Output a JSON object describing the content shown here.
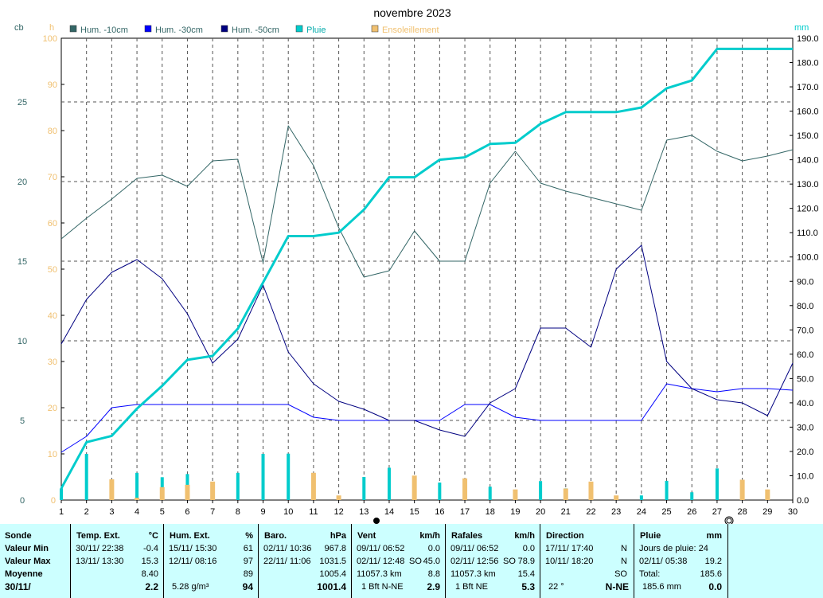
{
  "chart_data": {
    "type": "line",
    "title": "novembre 2023",
    "days": [
      1,
      2,
      3,
      4,
      5,
      6,
      7,
      8,
      9,
      10,
      11,
      12,
      13,
      14,
      15,
      16,
      17,
      18,
      19,
      20,
      21,
      22,
      23,
      24,
      25,
      26,
      27,
      28,
      29,
      30
    ],
    "axes": {
      "left_cb": {
        "label": "cb",
        "ticks": [
          5,
          10,
          15,
          20,
          25
        ],
        "range": [
          0,
          29
        ]
      },
      "left_h": {
        "label": "h",
        "ticks": [
          10,
          20,
          30,
          40,
          50,
          60,
          70,
          80,
          90,
          100
        ],
        "range": [
          0,
          100
        ],
        "tick_color": "#f0c070"
      },
      "right_mm": {
        "label": "mm",
        "ticks": [
          10,
          20,
          30,
          40,
          50,
          60,
          70,
          80,
          90,
          100,
          110,
          120,
          130,
          140,
          150,
          160,
          170,
          180,
          190
        ],
        "range": [
          0,
          190
        ]
      }
    },
    "legend": [
      {
        "name": "Hum. -10cm",
        "color": "#336666"
      },
      {
        "name": "Hum. -30cm",
        "color": "#0000ff"
      },
      {
        "name": "Hum. -50cm",
        "color": "#000080"
      },
      {
        "name": "Pluie",
        "color": "#00cccc"
      },
      {
        "name": "Ensoleillement",
        "color": "#f0c070"
      }
    ],
    "series": [
      {
        "name": "Hum. -10cm",
        "color": "#336666",
        "axis": "cb",
        "values": [
          16.4,
          17.7,
          18.9,
          20.2,
          20.4,
          19.7,
          21.3,
          21.4,
          14.9,
          23.5,
          21.0,
          17.1,
          14.0,
          14.4,
          16.9,
          15.0,
          15.0,
          19.9,
          21.9,
          19.9,
          19.4,
          19.0,
          18.6,
          18.2,
          22.6,
          22.9,
          21.9,
          21.3,
          21.6,
          22.0
        ]
      },
      {
        "name": "Hum. -30cm",
        "color": "#0000ff",
        "axis": "cb",
        "values": [
          3.0,
          4.0,
          5.8,
          6.0,
          6.0,
          6.0,
          6.0,
          6.0,
          6.0,
          6.0,
          5.2,
          5.0,
          5.0,
          5.0,
          5.0,
          5.0,
          6.0,
          6.0,
          5.2,
          5.0,
          5.0,
          5.0,
          5.0,
          5.0,
          7.3,
          7.0,
          6.8,
          7.0,
          7.0,
          6.9
        ]
      },
      {
        "name": "Hum. -50cm",
        "color": "#000080",
        "axis": "cb",
        "values": [
          9.8,
          12.6,
          14.3,
          15.1,
          13.9,
          11.7,
          8.6,
          10.1,
          13.5,
          9.3,
          7.3,
          6.2,
          5.7,
          5.0,
          5.0,
          4.4,
          4.0,
          6.1,
          7.0,
          10.8,
          10.8,
          9.6,
          14.5,
          16.0,
          8.7,
          7.0,
          6.3,
          6.1,
          5.3,
          8.6
        ]
      },
      {
        "name": "Pluie",
        "color": "#00cccc",
        "axis": "mm",
        "values": [
          4.8,
          23.8,
          26.4,
          37.6,
          47.0,
          57.7,
          59.3,
          70.5,
          89.5,
          108.6,
          108.6,
          110.0,
          119.5,
          132.8,
          132.8,
          140.0,
          141.0,
          146.5,
          147.0,
          154.8,
          159.6,
          159.6,
          159.6,
          161.5,
          169.4,
          172.6,
          185.6,
          185.6,
          185.6,
          185.6
        ]
      },
      {
        "name": "Pluie (journalière)",
        "color": "#00cccc",
        "type": "bar",
        "axis": "mm",
        "values": [
          4.8,
          19.0,
          2.6,
          11.2,
          9.4,
          10.7,
          1.6,
          11.2,
          19.0,
          19.1,
          0,
          1.4,
          9.5,
          13.3,
          0,
          7.2,
          1.0,
          5.5,
          0.5,
          7.8,
          4.8,
          0,
          0,
          1.9,
          7.9,
          3.2,
          13.0,
          0,
          0,
          0
        ]
      },
      {
        "name": "Ensoleillement",
        "color": "#f0c070",
        "type": "bar",
        "axis": "h",
        "values": [
          0,
          0,
          4.5,
          0.5,
          2.8,
          3.3,
          4.0,
          0,
          0,
          0,
          5.9,
          1.0,
          0,
          0,
          5.3,
          0,
          4.7,
          0,
          2.3,
          0,
          2.5,
          4.0,
          1.0,
          0,
          0,
          0,
          0,
          4.4,
          2.3,
          0
        ]
      }
    ],
    "grid": true
  },
  "stats": {
    "sonde": {
      "header": "Sonde",
      "rows": [
        "Valeur Min",
        "Valeur Max",
        "Moyenne"
      ],
      "date": "30/11/"
    },
    "temp": {
      "title": "Temp. Ext.",
      "unit": "°C",
      "min_dt": "30/11/ 22:38",
      "min_v": "-0.4",
      "max_dt": "13/11/ 13:30",
      "max_v": "15.3",
      "avg": "8.40",
      "last": "2.2"
    },
    "hum": {
      "title": "Hum. Ext.",
      "unit": "%",
      "min_dt": "15/11/ 15:30",
      "min_v": "61",
      "max_dt": "12/11/ 08:16",
      "max_v": "97",
      "avg": "89",
      "extra": "5.28 g/m³",
      "last": "94"
    },
    "baro": {
      "title": "Baro.",
      "unit": "hPa",
      "min_dt": "02/11/ 10:36",
      "min_v": "967.8",
      "max_dt": "22/11/ 11:06",
      "max_v": "1031.5",
      "avg": "1005.4",
      "last": "1001.4"
    },
    "vent": {
      "title": "Vent",
      "unit": "km/h",
      "min_dt": "09/11/ 06:52",
      "min_v": "0.0",
      "max_dt": "02/11/ 12:48",
      "max_dir": "SO",
      "max_v": "45.0",
      "dist": "11057.3 km",
      "avg": "8.8",
      "bft": "1 Bft N-NE",
      "last": "2.9"
    },
    "rafales": {
      "title": "Rafales",
      "unit": "km/h",
      "min_dt": "09/11/ 06:52",
      "min_v": "0.0",
      "max_dt": "02/11/ 12:56",
      "max_dir": "SO",
      "max_v": "78.9",
      "dist": "11057.3 km",
      "avg": "15.4",
      "bft": "1 Bft NE",
      "last": "5.3"
    },
    "direction": {
      "title": "Direction",
      "min_dt": "17/11/ 17:40",
      "min_v": "N",
      "max_dt": "10/11/ 18:20",
      "max_v": "N",
      "avg": "SO",
      "deg": "22 °",
      "last": "N-NE"
    },
    "pluie": {
      "title": "Pluie",
      "unit": "mm",
      "jours": "Jours de pluie: 24",
      "max_dt": "02/11/ 05:38",
      "max_v": "19.2",
      "total_label": "Total:",
      "total": "185.6",
      "month": "185.6 mm",
      "last": "0.0"
    }
  }
}
